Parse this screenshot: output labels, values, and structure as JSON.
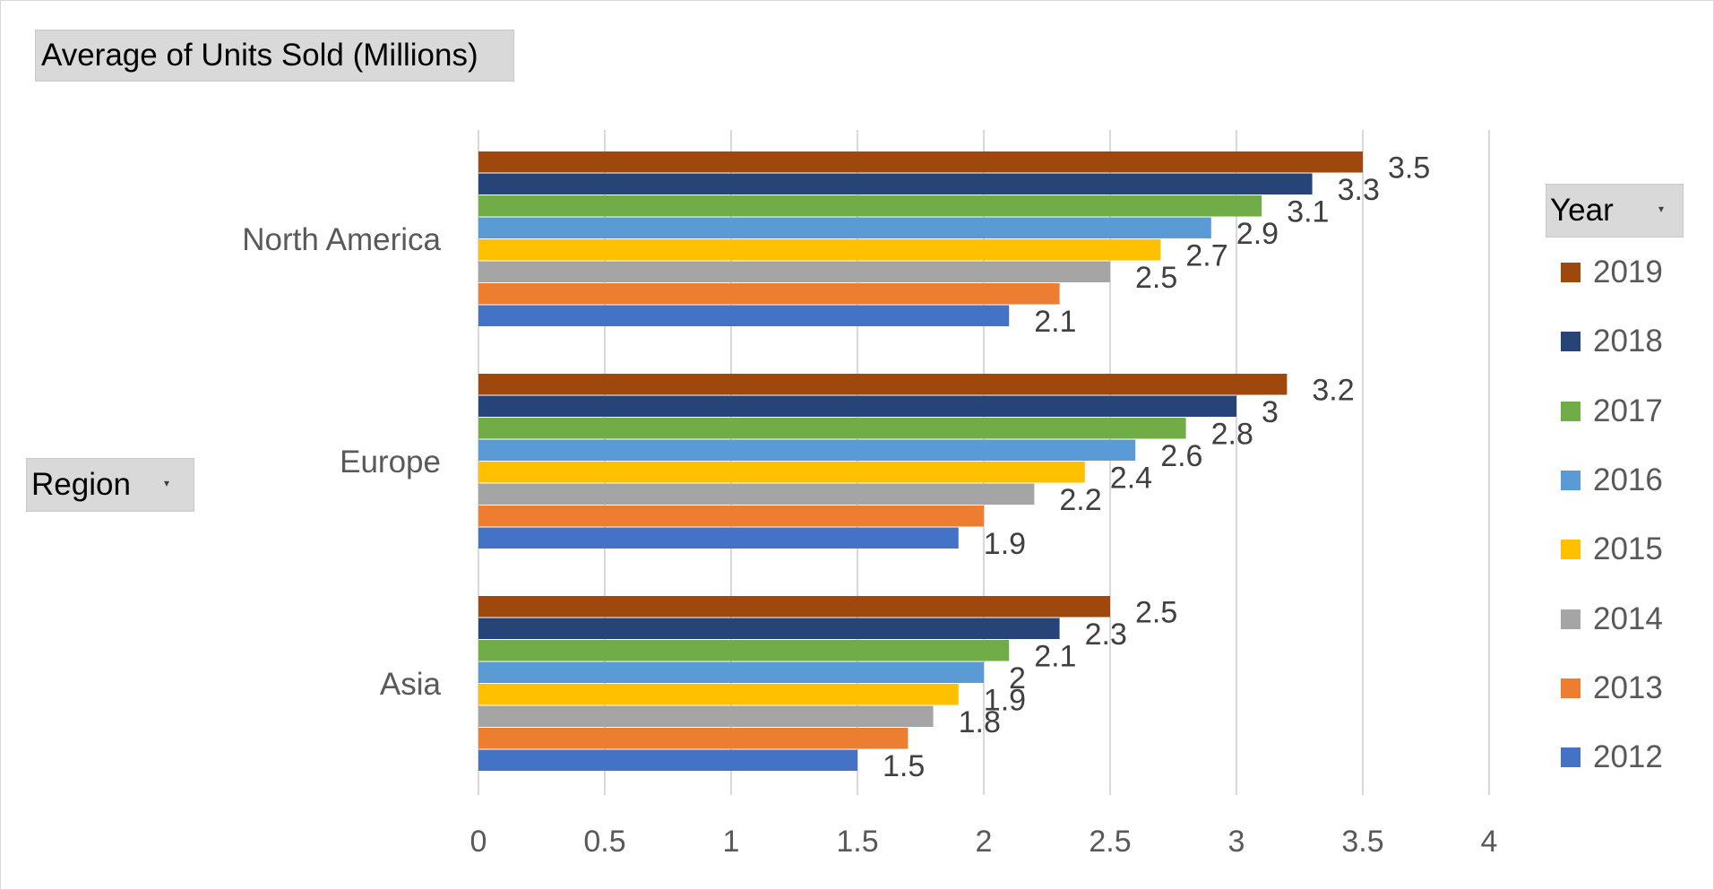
{
  "pivot_fields": {
    "values_field": "Average of Units Sold (Millions)",
    "row_field": "Region",
    "legend_field": "Year",
    "dropdown_glyph": "▾"
  },
  "legend": {
    "items": [
      {
        "label": "2019",
        "color": "#9E480E"
      },
      {
        "label": "2018",
        "color": "#264478"
      },
      {
        "label": "2017",
        "color": "#70AD47"
      },
      {
        "label": "2016",
        "color": "#5B9BD5"
      },
      {
        "label": "2015",
        "color": "#FFC000"
      },
      {
        "label": "2014",
        "color": "#A5A5A5"
      },
      {
        "label": "2013",
        "color": "#ED7D31"
      },
      {
        "label": "2012",
        "color": "#4472C4"
      }
    ]
  },
  "chart_data": {
    "type": "bar",
    "orientation": "horizontal",
    "categories": [
      "North America",
      "Europe",
      "Asia"
    ],
    "series": [
      {
        "name": "2019",
        "color": "#9E480E",
        "values": [
          3.5,
          3.2,
          2.5
        ]
      },
      {
        "name": "2018",
        "color": "#264478",
        "values": [
          3.3,
          3,
          2.3
        ]
      },
      {
        "name": "2017",
        "color": "#70AD47",
        "values": [
          3.1,
          2.8,
          2.1
        ]
      },
      {
        "name": "2016",
        "color": "#5B9BD5",
        "values": [
          2.9,
          2.6,
          2
        ]
      },
      {
        "name": "2015",
        "color": "#FFC000",
        "values": [
          2.7,
          2.4,
          1.9
        ]
      },
      {
        "name": "2014",
        "color": "#A5A5A5",
        "values": [
          2.5,
          2.2,
          1.8
        ]
      },
      {
        "name": "2013",
        "color": "#ED7D31",
        "values": [
          2.3,
          2,
          1.7
        ]
      },
      {
        "name": "2012",
        "color": "#4472C4",
        "values": [
          2.1,
          1.9,
          1.5
        ]
      }
    ],
    "data_labels": [
      [
        "3.5",
        "3.3",
        "3.1",
        "2.9",
        "2.7",
        "2.5",
        "",
        "2.1"
      ],
      [
        "3.2",
        "3",
        "2.8",
        "2.6",
        "2.4",
        "2.2",
        "",
        "1.9"
      ],
      [
        "2.5",
        "2.3",
        "2.1",
        "2",
        "1.9",
        "1.8",
        "",
        "1.5"
      ]
    ],
    "xlim": [
      0,
      4
    ],
    "xticks": [
      "0",
      "0.5",
      "1",
      "1.5",
      "2",
      "2.5",
      "3",
      "3.5",
      "4"
    ],
    "grid": true,
    "legend_position": "right"
  }
}
